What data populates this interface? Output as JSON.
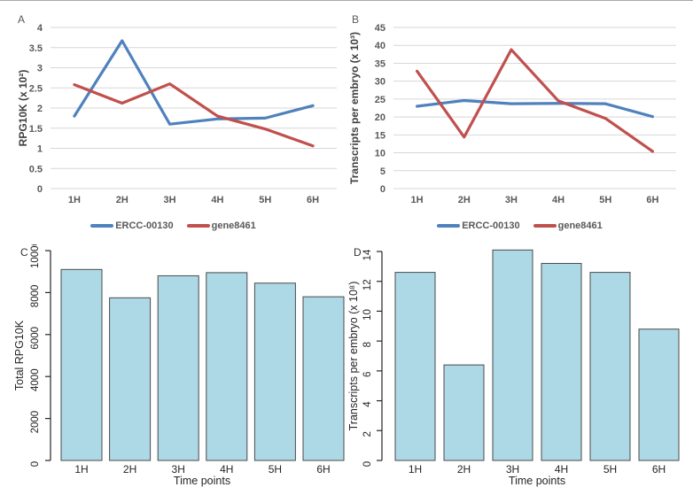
{
  "figure": {
    "background": "#ffffff",
    "panel_labels": [
      "A",
      "B",
      "C",
      "D"
    ]
  },
  "chart_data": [
    {
      "id": "A",
      "panel_label": "A",
      "type": "line",
      "categories": [
        "1H",
        "2H",
        "3H",
        "4H",
        "5H",
        "6H"
      ],
      "series": [
        {
          "name": "ERCC-00130",
          "color": "#4F81BD",
          "values": [
            1.8,
            3.67,
            1.6,
            1.73,
            1.75,
            2.06
          ]
        },
        {
          "name": "gene8461",
          "color": "#C0504D",
          "values": [
            2.58,
            2.12,
            2.6,
            1.8,
            1.48,
            1.06
          ]
        }
      ],
      "ylabel": "RPG10K (x 10²)",
      "xlabel": "",
      "ylim": [
        0,
        4
      ],
      "ytick_step": 0.5,
      "grid": true,
      "legend_position": "bottom",
      "gridline_color": "#D7D7D7",
      "axis_text_color": "#595959"
    },
    {
      "id": "B",
      "panel_label": "B",
      "type": "line",
      "categories": [
        "1H",
        "2H",
        "3H",
        "4H",
        "5H",
        "6H"
      ],
      "series": [
        {
          "name": "ERCC-00130",
          "color": "#4F81BD",
          "values": [
            23,
            24.6,
            23.7,
            23.8,
            23.7,
            20.1
          ]
        },
        {
          "name": "gene8461",
          "color": "#C0504D",
          "values": [
            32.8,
            14.4,
            38.8,
            24.5,
            19.6,
            10.4
          ]
        }
      ],
      "ylabel": "Transcripts per embryo (x 10³)",
      "xlabel": "",
      "ylim": [
        0,
        45
      ],
      "ytick_step": 5,
      "grid": true,
      "legend_position": "bottom",
      "gridline_color": "#D7D7D7",
      "axis_text_color": "#595959"
    },
    {
      "id": "C",
      "panel_label": "C",
      "type": "bar",
      "categories": [
        "1H",
        "2H",
        "3H",
        "4H",
        "5H",
        "6H"
      ],
      "values": [
        9100,
        7750,
        8800,
        8950,
        8450,
        7800
      ],
      "ylabel": "Total RPG10K",
      "xlabel": "Time points",
      "ylim": [
        0,
        10000
      ],
      "ytick_step": 2000,
      "grid": false,
      "bar_color": "#ADD8E6",
      "bar_border": "#4a4a4a",
      "axis_color": "#262626"
    },
    {
      "id": "D",
      "panel_label": "D",
      "type": "bar",
      "categories": [
        "1H",
        "2H",
        "3H",
        "4H",
        "5H",
        "6H"
      ],
      "values": [
        12.6,
        6.4,
        14.1,
        13.2,
        12.6,
        8.8
      ],
      "ylabel": "Transcripts per embryo (x 10⁸)",
      "xlabel": "Time points",
      "ylim": [
        0,
        14
      ],
      "ytick_step": 2,
      "grid": false,
      "bar_color": "#ADD8E6",
      "bar_border": "#4a4a4a",
      "axis_color": "#262626"
    }
  ]
}
